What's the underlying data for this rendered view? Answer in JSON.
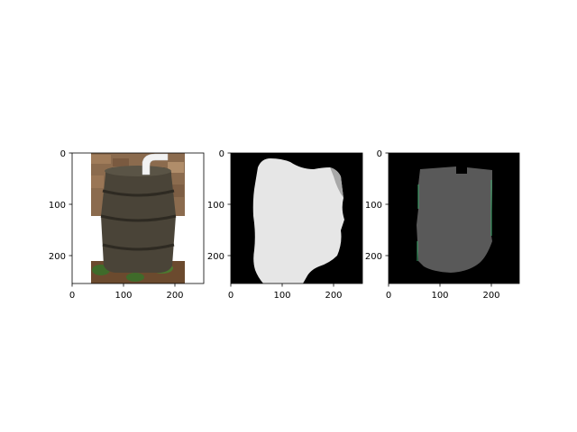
{
  "chart_data": [
    {
      "type": "image",
      "content": "photo of a dark brown plastic rain barrel with a white downspout pipe on top, standing on mulch and green plants against a stone wall",
      "xlim": [
        0,
        256
      ],
      "ylim": [
        256,
        0
      ],
      "xticks": [
        "0",
        "100",
        "200"
      ],
      "yticks": [
        "0",
        "100",
        "200"
      ],
      "colors": {
        "barrel": "#4a4438",
        "background": "#ffffff",
        "wall": "#8b6b4e",
        "ground": "#6b4a2e"
      }
    },
    {
      "type": "image",
      "content": "segmentation mask: light grey barrel silhouette on black background",
      "xlim": [
        0,
        256
      ],
      "ylim": [
        256,
        0
      ],
      "xticks": [
        "0",
        "100",
        "200"
      ],
      "yticks": [
        "0",
        "100",
        "200"
      ],
      "colors": {
        "mask": "#e6e6e6",
        "background": "#000000",
        "edge": "#a8a8a8"
      }
    },
    {
      "type": "image",
      "content": "predicted mask: dark grey barrel region with green outline on black background",
      "xlim": [
        0,
        256
      ],
      "ylim": [
        256,
        0
      ],
      "xticks": [
        "0",
        "100",
        "200"
      ],
      "yticks": [
        "0",
        "100",
        "200"
      ],
      "colors": {
        "mask": "#595959",
        "background": "#000000",
        "edge": "#3aa86a"
      }
    }
  ]
}
